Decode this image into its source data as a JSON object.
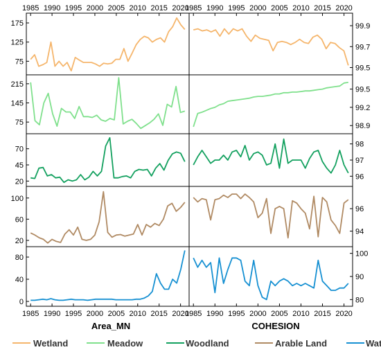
{
  "chart_data": {
    "type": "line",
    "x_ticks": [
      1985,
      1990,
      1995,
      2000,
      2005,
      2010,
      2015,
      2020
    ],
    "xlim": [
      1984,
      2022
    ],
    "column_titles": [
      "Area_MN",
      "COHESION"
    ],
    "legend": [
      {
        "name": "Wetland",
        "color": "#F5B56B"
      },
      {
        "name": "Meadow",
        "color": "#7FE08C"
      },
      {
        "name": "Woodland",
        "color": "#12A05E"
      },
      {
        "name": "Arable Land",
        "color": "#B08A63"
      },
      {
        "name": "Water",
        "color": "#1690D2"
      }
    ],
    "panels": [
      {
        "key": "wetland_area",
        "ylim": [
          45,
          195
        ],
        "yticks": [
          75,
          125,
          175
        ],
        "color": "#F5B56B",
        "values": [
          80,
          92,
          62,
          66,
          72,
          125,
          62,
          75,
          62,
          72,
          50,
          85,
          78,
          72,
          72,
          72,
          68,
          62,
          70,
          68,
          70,
          80,
          80,
          108,
          75,
          96,
          118,
          132,
          140,
          136,
          125,
          132,
          136,
          125,
          152,
          165,
          188,
          170,
          158
        ]
      },
      {
        "key": "meadow_area",
        "ylim": [
          40,
          240
        ],
        "yticks": [
          75,
          145,
          215
        ],
        "color": "#7FE08C",
        "values": [
          220,
          80,
          65,
          145,
          180,
          105,
          60,
          125,
          112,
          112,
          88,
          132,
          95,
          95,
          92,
          100,
          83,
          78,
          88,
          83,
          237,
          68,
          78,
          85,
          70,
          52,
          62,
          72,
          85,
          105,
          63,
          140,
          130,
          205,
          110,
          115
        ]
      },
      {
        "key": "woodland_area",
        "ylim": [
          15,
          90
        ],
        "yticks": [
          20,
          45,
          70
        ],
        "color": "#12A05E",
        "values": [
          25,
          24,
          40,
          41,
          28,
          30,
          25,
          26,
          18,
          22,
          20,
          22,
          30,
          22,
          26,
          35,
          28,
          35,
          74,
          87,
          25,
          25,
          27,
          28,
          25,
          35,
          38,
          37,
          38,
          28,
          40,
          47,
          37,
          52,
          62,
          65,
          63,
          50
        ]
      },
      {
        "key": "arable_area",
        "ylim": [
          12,
          118
        ],
        "yticks": [
          20,
          60,
          100
        ],
        "color": "#B08A63",
        "values": [
          34,
          30,
          25,
          22,
          15,
          22,
          18,
          16,
          32,
          40,
          30,
          45,
          22,
          20,
          22,
          30,
          55,
          112,
          35,
          26,
          30,
          31,
          28,
          30,
          32,
          50,
          30,
          50,
          45,
          52,
          48,
          60,
          85,
          90,
          75,
          82,
          92
        ]
      },
      {
        "key": "water_area",
        "ylim": [
          -5,
          95
        ],
        "yticks": [
          0,
          40,
          80
        ],
        "color": "#1690D2",
        "values": [
          2,
          2,
          3,
          4,
          3,
          5,
          3,
          2,
          2,
          3,
          4,
          3,
          3,
          3,
          2,
          3,
          4,
          4,
          4,
          4,
          4,
          3,
          3,
          3,
          3,
          3,
          4,
          4,
          6,
          10,
          18,
          50,
          33,
          22,
          22,
          40,
          33,
          58,
          92
        ]
      },
      {
        "key": "wetland_cohesion",
        "ylim": [
          99.45,
          100.0
        ],
        "yticks": [
          99.5,
          99.7,
          99.9
        ],
        "color": "#F5B56B",
        "values": [
          99.86,
          99.87,
          99.85,
          99.86,
          99.84,
          99.86,
          99.8,
          99.87,
          99.82,
          99.87,
          99.85,
          99.87,
          99.8,
          99.75,
          99.81,
          99.78,
          99.77,
          99.76,
          99.66,
          99.74,
          99.75,
          99.74,
          99.72,
          99.74,
          99.77,
          99.74,
          99.73,
          99.79,
          99.81,
          99.77,
          99.68,
          99.74,
          99.73,
          99.69,
          99.66,
          99.52
        ]
      },
      {
        "key": "meadow_cohesion",
        "ylim": [
          98.8,
          99.7
        ],
        "yticks": [
          98.9,
          99.2,
          99.5
        ],
        "color": "#7FE08C",
        "values": [
          98.88,
          99.1,
          99.12,
          99.15,
          99.18,
          99.2,
          99.24,
          99.26,
          99.3,
          99.31,
          99.32,
          99.33,
          99.34,
          99.35,
          99.37,
          99.38,
          99.38,
          99.39,
          99.4,
          99.42,
          99.42,
          99.44,
          99.44,
          99.45,
          99.45,
          99.46,
          99.47,
          99.47,
          99.48,
          99.49,
          99.5,
          99.52,
          99.53,
          99.54,
          99.55,
          99.6,
          99.61
        ]
      },
      {
        "key": "woodland_cohesion",
        "ylim": [
          95.5,
          98.5
        ],
        "yticks": [
          96,
          97,
          98
        ],
        "color": "#12A05E",
        "values": [
          96.7,
          97.2,
          97.6,
          97.2,
          96.8,
          97.0,
          97.0,
          97.3,
          97.0,
          97.5,
          97.6,
          97.2,
          97.9,
          97.0,
          97.4,
          97.5,
          97.3,
          96.7,
          96.8,
          98.0,
          96.5,
          98.3,
          96.8,
          97.0,
          97.0,
          97.0,
          96.5,
          97.1,
          97.5,
          97.6,
          96.9,
          96.5,
          96.2,
          96.7,
          97.6,
          96.7,
          96.2
        ]
      },
      {
        "key": "arable_cohesion",
        "ylim": [
          92.8,
          97.8
        ],
        "yticks": [
          94,
          96
        ],
        "color": "#B08A63",
        "values": [
          97.0,
          96.6,
          96.9,
          96.8,
          95.0,
          96.8,
          96.9,
          97.2,
          97.0,
          97.3,
          97.3,
          96.9,
          97.3,
          97.0,
          96.6,
          95.2,
          95.6,
          96.9,
          93.8,
          96.0,
          96.2,
          96.0,
          93.4,
          96.7,
          96.5,
          96.0,
          95.6,
          94.2,
          97.1,
          93.5,
          97.0,
          96.6,
          95.0,
          94.5,
          93.8,
          96.5,
          96.8
        ]
      },
      {
        "key": "water_cohesion",
        "ylim": [
          78,
          102
        ],
        "yticks": [
          80,
          90,
          100
        ],
        "color": "#1690D2",
        "values": [
          98,
          94,
          97,
          94,
          96,
          83,
          98,
          87,
          93,
          98,
          98,
          97,
          88,
          86,
          97,
          86,
          81,
          80,
          88,
          86,
          88,
          89,
          88,
          86,
          87,
          86,
          87,
          86,
          85,
          97,
          88,
          86,
          84,
          84,
          85,
          85,
          87
        ]
      }
    ]
  }
}
